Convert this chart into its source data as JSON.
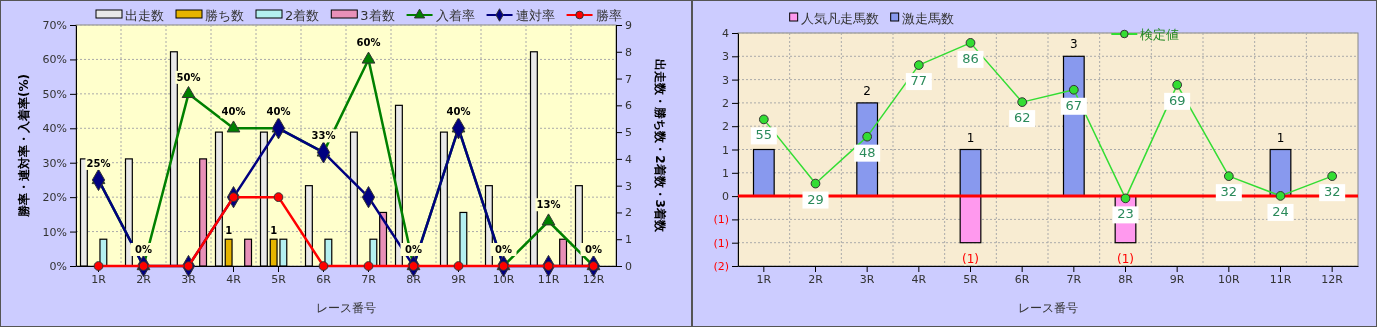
{
  "chart_data": [
    {
      "type": "bar",
      "xlabel": "レース番号",
      "ylabel": "勝率・連対率・入着率(%)",
      "y2label": "出走数・勝ち数・2着数・3着数",
      "categories": [
        "1R",
        "2R",
        "3R",
        "4R",
        "5R",
        "6R",
        "7R",
        "8R",
        "9R",
        "10R",
        "11R",
        "12R"
      ],
      "series": [
        {
          "name": "出走数",
          "axis": "y2",
          "color": "#e8e8e8",
          "values": [
            4,
            4,
            8,
            5,
            5,
            3,
            5,
            6,
            5,
            3,
            8,
            3
          ]
        },
        {
          "name": "勝ち数",
          "axis": "y2",
          "color": "#e6b400",
          "values": [
            0,
            0,
            0,
            1,
            1,
            0,
            0,
            0,
            0,
            0,
            0,
            0
          ],
          "value_labels": [
            null,
            null,
            null,
            "1",
            "1",
            null,
            null,
            null,
            null,
            null,
            null,
            null
          ]
        },
        {
          "name": "2着数",
          "axis": "y2",
          "color": "#b4f0f0",
          "values": [
            1,
            0,
            0,
            0,
            1,
            1,
            1,
            0,
            2,
            0,
            0,
            0
          ]
        },
        {
          "name": "3着数",
          "axis": "y2",
          "color": "#e890b8",
          "values": [
            0,
            0,
            4,
            1,
            0,
            0,
            2,
            0,
            0,
            0,
            1,
            0
          ]
        },
        {
          "name": "入着率",
          "type": "line",
          "color": "#008000",
          "marker": "triangle",
          "values": [
            25,
            0,
            50,
            40,
            40,
            33,
            60,
            0,
            40,
            0,
            13,
            0
          ],
          "value_labels": [
            "25%",
            "0%",
            "50%",
            "40%",
            "40%",
            "33%",
            "60%",
            "0%",
            "40%",
            "0%",
            "13%",
            "0%"
          ]
        },
        {
          "name": "連対率",
          "type": "line",
          "color": "#000080",
          "marker": "diamond",
          "values": [
            25,
            0,
            0,
            20,
            40,
            33,
            20,
            0,
            40,
            0,
            0,
            0
          ]
        },
        {
          "name": "勝率",
          "type": "line",
          "color": "#ff0000",
          "marker": "circle",
          "values": [
            0,
            0,
            0,
            20,
            20,
            0,
            0,
            0,
            0,
            0,
            0,
            0
          ]
        }
      ],
      "ylim": [
        0,
        70
      ],
      "yticks": [
        {
          "value": 0,
          "label": "0%"
        },
        {
          "value": 10,
          "label": "10%"
        },
        {
          "value": 20,
          "label": "20%"
        },
        {
          "value": 30,
          "label": "30%"
        },
        {
          "value": 40,
          "label": "40%"
        },
        {
          "value": 50,
          "label": "50%"
        },
        {
          "value": 60,
          "label": "60%"
        },
        {
          "value": 70,
          "label": "70%"
        }
      ],
      "y2lim": [
        0,
        9
      ],
      "y2ticks": [
        0,
        1,
        2,
        3,
        4,
        5,
        6,
        7,
        8,
        9
      ],
      "grid": true,
      "legend": "top"
    },
    {
      "type": "bar",
      "xlabel": "レース番号",
      "categories": [
        "1R",
        "2R",
        "3R",
        "4R",
        "5R",
        "6R",
        "7R",
        "8R",
        "9R",
        "10R",
        "11R",
        "12R"
      ],
      "stacked": true,
      "series": [
        {
          "name": "人気凡走馬数",
          "color": "#ff99ee",
          "values": [
            0,
            0,
            0,
            0,
            -1,
            0,
            0,
            -1,
            0,
            0,
            0,
            0
          ],
          "value_labels": [
            null,
            null,
            null,
            null,
            "(1)",
            null,
            null,
            "(1)",
            null,
            null,
            null,
            null
          ]
        },
        {
          "name": "激走馬数",
          "color": "#8899ee",
          "values": [
            1,
            0,
            2,
            0,
            1,
            0,
            3,
            0,
            0,
            0,
            1,
            0
          ],
          "value_labels": [
            null,
            null,
            "2",
            null,
            "1",
            null,
            "3",
            null,
            null,
            null,
            "1",
            null
          ]
        },
        {
          "name": "検定値",
          "type": "line",
          "axis": "y2",
          "color": "#33dd33",
          "marker": "circle",
          "values": [
            55,
            29,
            48,
            77,
            86,
            62,
            67,
            23,
            69,
            32,
            24,
            32
          ],
          "data_labels": true
        }
      ],
      "ylim": [
        -1.5,
        3.5
      ],
      "yticks": [
        {
          "value": -1.5,
          "label": "(2)"
        },
        {
          "value": -1,
          "label": "(1)"
        },
        {
          "value": -0.5,
          "label": "(1)"
        },
        {
          "value": 0,
          "label": "0"
        },
        {
          "value": 0.5,
          "label": "1"
        },
        {
          "value": 1,
          "label": "1"
        },
        {
          "value": 1.5,
          "label": "2"
        },
        {
          "value": 2,
          "label": "2"
        },
        {
          "value": 2.5,
          "label": "3"
        },
        {
          "value": 3,
          "label": "3"
        },
        {
          "value": 3.5,
          "label": "4"
        }
      ],
      "y2lim": [
        -4.4,
        90
      ],
      "ref_lines": [
        {
          "axis": "y",
          "value": 0,
          "color": "#ff0000"
        }
      ],
      "grid": true,
      "legend": "top"
    }
  ]
}
